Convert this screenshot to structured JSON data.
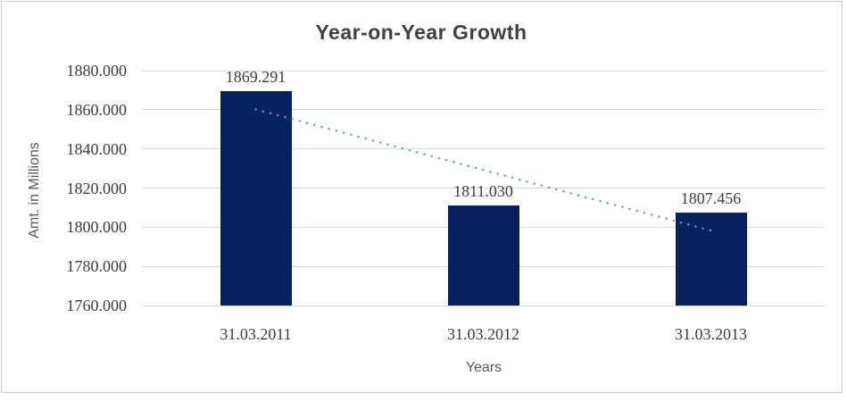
{
  "chart_data": {
    "type": "bar",
    "title": "Year-on-Year Growth",
    "xlabel": "Years",
    "ylabel": "Amt. in Millions",
    "categories": [
      "31.03.2011",
      "31.03.2012",
      "31.03.2013"
    ],
    "values": [
      1869.291,
      1811.03,
      1807.456
    ],
    "data_labels": [
      "1869.291",
      "1811.030",
      "1807.456"
    ],
    "yticks": [
      "1880.000",
      "1860.000",
      "1840.000",
      "1820.000",
      "1800.000",
      "1780.000",
      "1760.000"
    ],
    "ylim": [
      1760,
      1880
    ],
    "grid": "horizontal-only",
    "legend": "none",
    "colors": {
      "bar": "#05215f",
      "trendline": "#5b9bd5",
      "gridline": "#d9d9d9",
      "frame_border": "#c9c9c9",
      "title_text": "#404040",
      "tick_text": "#3d3d3d",
      "axis_title_text": "#595959"
    },
    "trendline": {
      "type": "linear",
      "style": "dotted",
      "start_value": 1860.2,
      "end_value": 1798.3
    }
  }
}
